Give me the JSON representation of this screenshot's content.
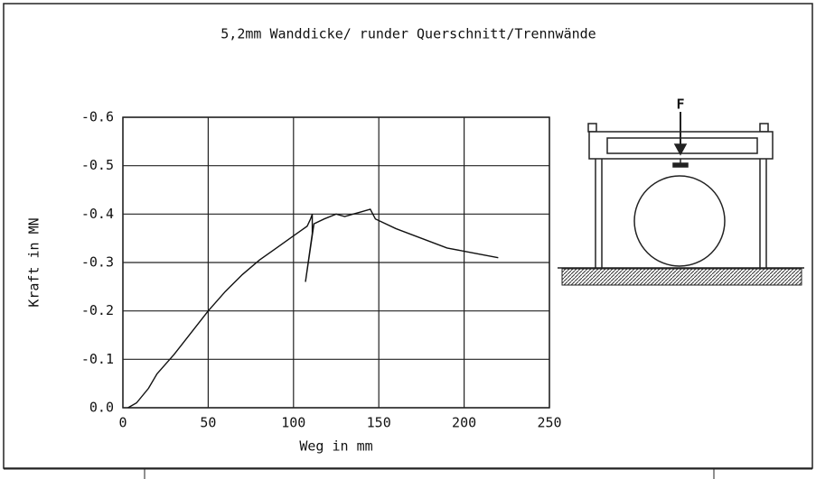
{
  "chart_data": {
    "type": "line",
    "title": "5,2mm Wanddicke/ runder Querschnitt/Trennwände",
    "x_label": "Weg in mm",
    "y_label": "Kraft in MN",
    "x": [
      3,
      8,
      15,
      20,
      25,
      30,
      40,
      50,
      60,
      70,
      80,
      90,
      100,
      108,
      110,
      111,
      111,
      107,
      112,
      118,
      125,
      130,
      135,
      140,
      145,
      148,
      160,
      175,
      190,
      205,
      220
    ],
    "series": [
      {
        "name": "Kraft",
        "color": "#111111",
        "values": [
          0,
          -0.01,
          -0.04,
          -0.07,
          -0.09,
          -0.11,
          -0.155,
          -0.2,
          -0.24,
          -0.275,
          -0.305,
          -0.33,
          -0.355,
          -0.375,
          -0.39,
          -0.4,
          -0.36,
          -0.26,
          -0.38,
          -0.39,
          -0.4,
          -0.395,
          -0.4,
          -0.405,
          -0.41,
          -0.39,
          -0.37,
          -0.35,
          -0.33,
          -0.32,
          -0.31
        ]
      }
    ],
    "xlim": [
      0,
      250
    ],
    "xticks": [
      0,
      50,
      100,
      150,
      200,
      250
    ],
    "ylim": [
      0,
      -0.6
    ],
    "yticks": [
      {
        "value": 0,
        "label": "0.0"
      },
      -0.1,
      -0.2,
      -0.3,
      -0.4,
      -0.5,
      -0.6
    ],
    "grid": true
  },
  "diagram": {
    "force_label": "F"
  }
}
